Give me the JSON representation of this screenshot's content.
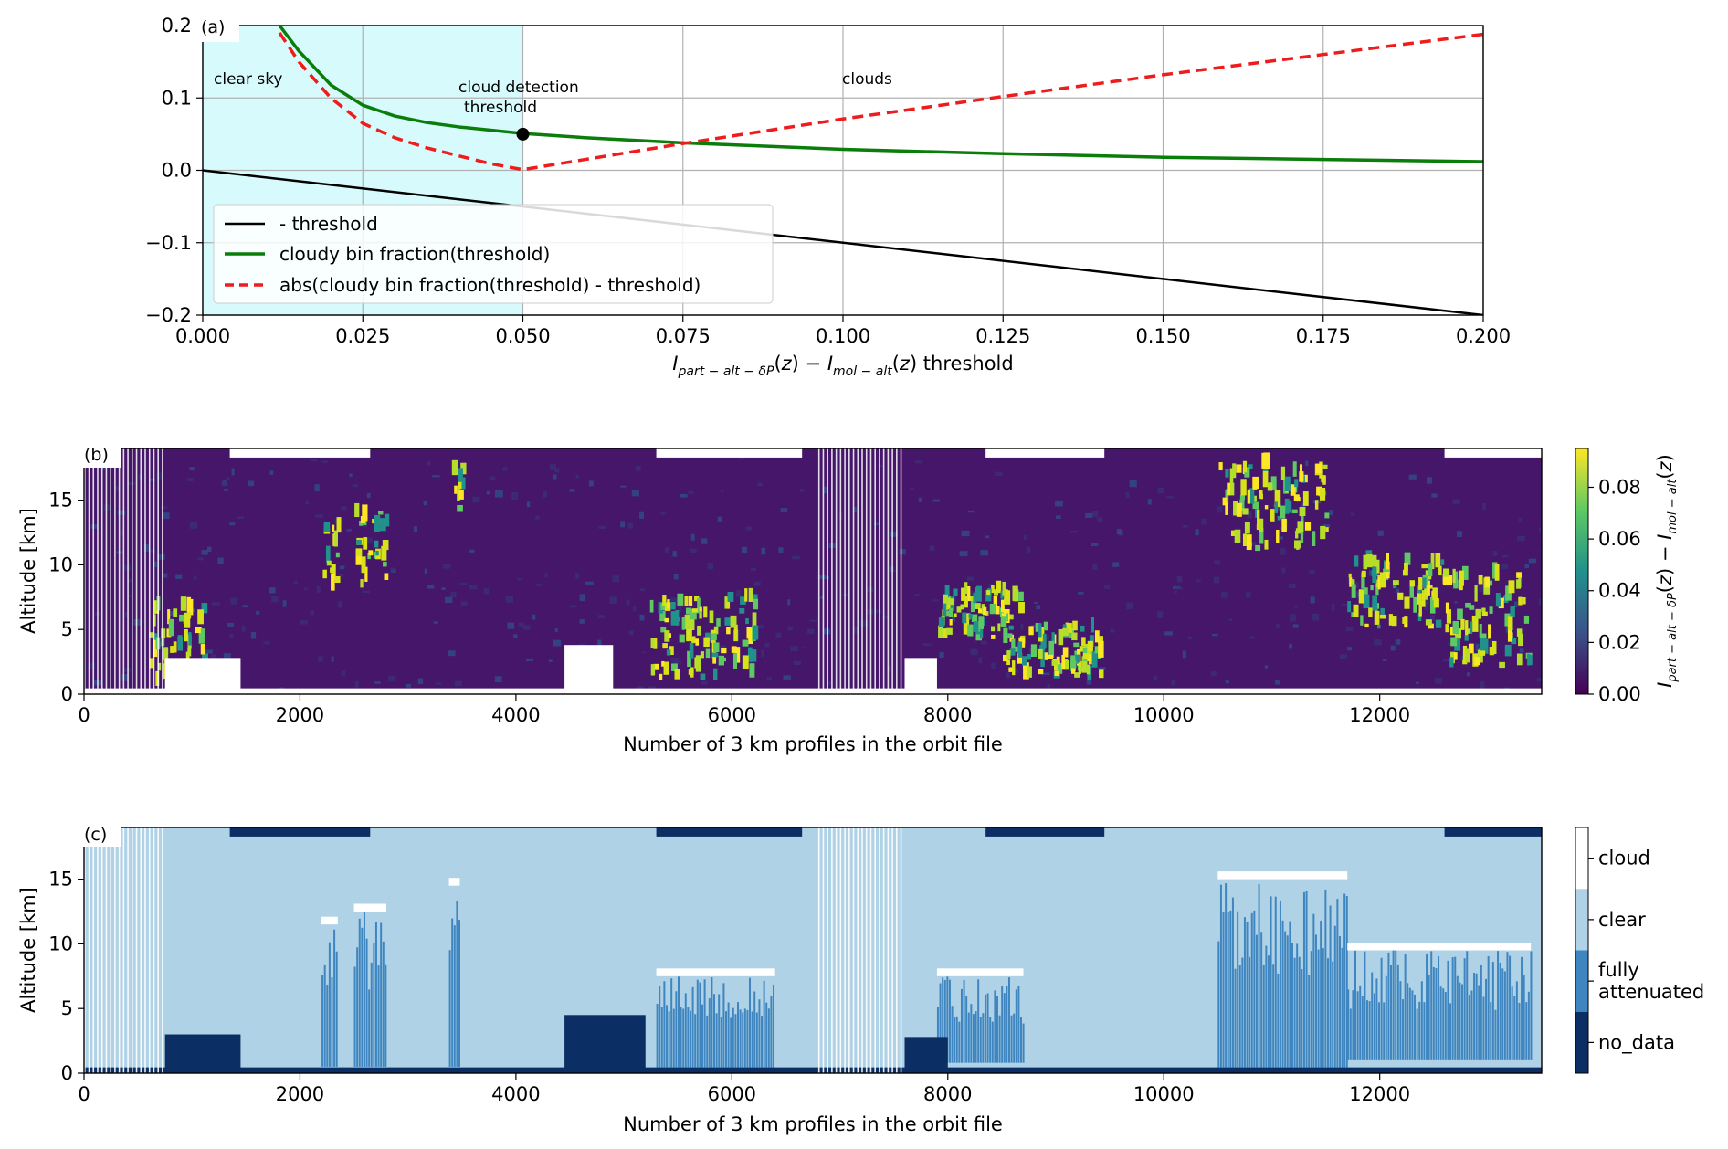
{
  "chart_data": [
    {
      "type": "line",
      "panel_label": "(a)",
      "xlabel": "I_{part-alt-δP}(z) − I_{mol-alt}(z) threshold",
      "ylabel": "",
      "xlim": [
        0.0,
        0.2
      ],
      "ylim": [
        -0.2,
        0.2
      ],
      "xticks": [
        "0.000",
        "0.025",
        "0.050",
        "0.075",
        "0.100",
        "0.125",
        "0.150",
        "0.175",
        "0.200"
      ],
      "yticks": [
        "−0.2",
        "−0.1",
        "0.0",
        "0.1",
        "0.2"
      ],
      "grid": true,
      "legend_position": "lower-left",
      "shaded_region": {
        "x": [
          0.0,
          0.05
        ],
        "color": "#d7fbfc"
      },
      "annotations": [
        {
          "text": "clear sky",
          "x": 0.002,
          "y": 0.125
        },
        {
          "text": "cloud detection",
          "x": 0.05,
          "y": 0.113
        },
        {
          "text": "threshold",
          "x": 0.05,
          "y": 0.085
        },
        {
          "text": "clouds",
          "x": 0.1,
          "y": 0.127
        }
      ],
      "marker": {
        "x": 0.05,
        "y": 0.05,
        "color": "#000000"
      },
      "series": [
        {
          "name": "- threshold",
          "color": "#000000",
          "style": "solid",
          "x": [
            0.0,
            0.2
          ],
          "y": [
            0.0,
            -0.2
          ]
        },
        {
          "name": "cloudy bin fraction(threshold)",
          "color": "#0a7d0a",
          "style": "solid",
          "x": [
            0.012,
            0.015,
            0.02,
            0.025,
            0.03,
            0.035,
            0.04,
            0.05,
            0.06,
            0.075,
            0.1,
            0.125,
            0.15,
            0.175,
            0.2
          ],
          "y": [
            0.2,
            0.165,
            0.118,
            0.09,
            0.075,
            0.066,
            0.06,
            0.051,
            0.045,
            0.038,
            0.029,
            0.023,
            0.018,
            0.015,
            0.012
          ]
        },
        {
          "name": "abs(cloudy bin fraction(threshold) - threshold)",
          "color": "#ee1c1c",
          "style": "dashed",
          "x": [
            0.012,
            0.015,
            0.02,
            0.025,
            0.03,
            0.035,
            0.04,
            0.045,
            0.05,
            0.075,
            0.1,
            0.125,
            0.15,
            0.175,
            0.2
          ],
          "y": [
            0.19,
            0.15,
            0.1,
            0.065,
            0.045,
            0.031,
            0.02,
            0.009,
            0.001,
            0.037,
            0.071,
            0.102,
            0.132,
            0.16,
            0.188
          ]
        }
      ]
    },
    {
      "type": "heatmap",
      "panel_label": "(b)",
      "xlabel": "Number of 3 km profiles in the orbit file",
      "ylabel": "Altitude [km]",
      "xlim": [
        0,
        13500
      ],
      "ylim": [
        0,
        19
      ],
      "xticks": [
        "0",
        "2000",
        "4000",
        "6000",
        "8000",
        "10000",
        "12000"
      ],
      "yticks": [
        "0",
        "5",
        "10",
        "15"
      ],
      "colorbar": {
        "label": "I_{part-alt-δP}(z) − I_{mol-alt}(z)",
        "range": [
          0.0,
          0.095
        ],
        "ticks": [
          "0.00",
          "0.02",
          "0.04",
          "0.06",
          "0.08"
        ],
        "colormap": "viridis"
      },
      "cloud_features": [
        {
          "x": [
            600,
            1100
          ],
          "y": [
            0.5,
            6.5
          ]
        },
        {
          "x": [
            2200,
            2350
          ],
          "y": [
            8,
            13
          ]
        },
        {
          "x": [
            2500,
            2800
          ],
          "y": [
            8,
            14
          ]
        },
        {
          "x": [
            3400,
            3500
          ],
          "y": [
            13,
            17
          ]
        },
        {
          "x": [
            5200,
            6200
          ],
          "y": [
            1,
            7.5
          ]
        },
        {
          "x": [
            7900,
            8700
          ],
          "y": [
            4,
            8
          ]
        },
        {
          "x": [
            8500,
            9400
          ],
          "y": [
            1,
            5
          ]
        },
        {
          "x": [
            10500,
            11500
          ],
          "y": [
            11,
            17.5
          ]
        },
        {
          "x": [
            11700,
            12600
          ],
          "y": [
            5,
            10
          ]
        },
        {
          "x": [
            12600,
            13400
          ],
          "y": [
            2,
            9
          ]
        }
      ],
      "no_data_ground_regions": [
        {
          "x": [
            750,
            1450
          ],
          "top": 2.8
        },
        {
          "x": [
            4450,
            4900
          ],
          "top": 3.8
        },
        {
          "x": [
            7600,
            7900
          ],
          "top": 2.8
        }
      ]
    },
    {
      "type": "heatmap",
      "panel_label": "(c)",
      "xlabel": "Number of 3 km profiles in the orbit file",
      "ylabel": "Altitude [km]",
      "xlim": [
        0,
        13500
      ],
      "ylim": [
        0,
        19
      ],
      "xticks": [
        "0",
        "2000",
        "4000",
        "6000",
        "8000",
        "10000",
        "12000"
      ],
      "yticks": [
        "0",
        "5",
        "10",
        "15"
      ],
      "colorbar": {
        "categories": [
          "cloud",
          "clear",
          "fully\nattenuated",
          "no_data"
        ],
        "colors": [
          "#ffffff",
          "#b0d2e6",
          "#3f86c0",
          "#0b2f65"
        ]
      },
      "classification": [
        {
          "class": "fully attenuated",
          "x": [
            2200,
            2350
          ],
          "y": [
            0.5,
            11.5
          ]
        },
        {
          "class": "fully attenuated",
          "x": [
            2500,
            2800
          ],
          "y": [
            0.5,
            12.5
          ]
        },
        {
          "class": "fully attenuated",
          "x": [
            3380,
            3480
          ],
          "y": [
            0.5,
            14.5
          ]
        },
        {
          "class": "fully attenuated",
          "x": [
            5300,
            6400
          ],
          "y": [
            1.5,
            7.5
          ]
        },
        {
          "class": "fully attenuated",
          "x": [
            7900,
            8700
          ],
          "y": [
            0.8,
            7.5
          ]
        },
        {
          "class": "fully attenuated",
          "x": [
            10500,
            11700
          ],
          "y": [
            1.5,
            15
          ]
        },
        {
          "class": "fully attenuated",
          "x": [
            11700,
            13400
          ],
          "y": [
            1,
            9.5
          ]
        },
        {
          "class": "no_data",
          "x": [
            750,
            1450
          ],
          "y": [
            0,
            3
          ]
        },
        {
          "class": "no_data",
          "x": [
            4450,
            5200
          ],
          "y": [
            0,
            4.5
          ]
        },
        {
          "class": "no_data",
          "x": [
            7600,
            8000
          ],
          "y": [
            0,
            2.8
          ]
        },
        {
          "class": "no_data",
          "x": [
            0,
            13500
          ],
          "y": [
            0,
            0.45
          ]
        },
        {
          "class": "no_data",
          "x": [
            1350,
            2650
          ],
          "y": [
            18.3,
            19
          ]
        },
        {
          "class": "no_data",
          "x": [
            5300,
            6650
          ],
          "y": [
            18.3,
            19
          ]
        },
        {
          "class": "no_data",
          "x": [
            8350,
            9450
          ],
          "y": [
            18.3,
            19
          ]
        },
        {
          "class": "no_data",
          "x": [
            12600,
            13500
          ],
          "y": [
            18.3,
            19
          ]
        }
      ]
    }
  ]
}
